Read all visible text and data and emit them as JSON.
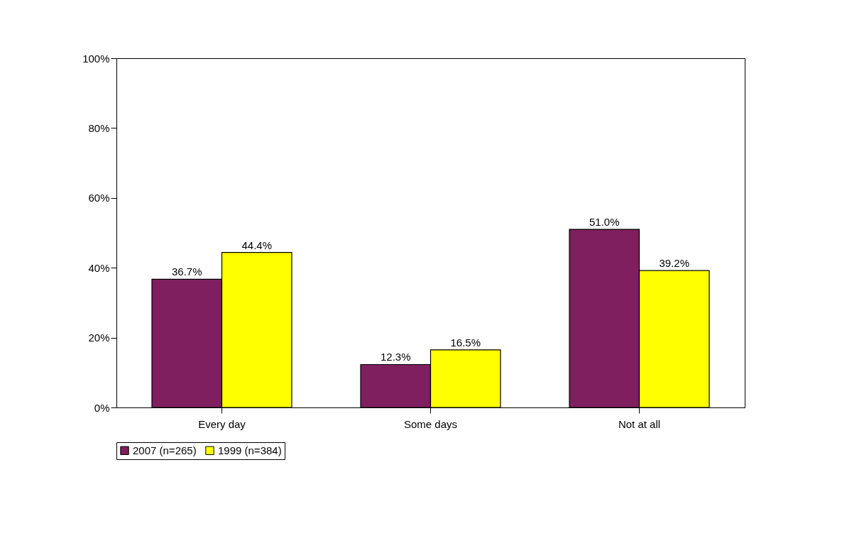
{
  "chart_data": {
    "type": "bar",
    "categories": [
      "Every day",
      "Some days",
      "Not at all"
    ],
    "series": [
      {
        "name": "2007 (n=265)",
        "color": "#7f1f5f",
        "values": [
          36.7,
          12.3,
          51.0
        ],
        "value_labels": [
          "36.7%",
          "12.3%",
          "51.0%"
        ]
      },
      {
        "name": "1999 (n=384)",
        "color": "#ffff00",
        "values": [
          44.4,
          16.5,
          39.2
        ],
        "value_labels": [
          "44.4%",
          "16.5%",
          "39.2%"
        ]
      }
    ],
    "ylim": [
      0,
      100
    ],
    "yticks": [
      {
        "value": 0,
        "label": "0%"
      },
      {
        "value": 20,
        "label": "20%"
      },
      {
        "value": 40,
        "label": "40%"
      },
      {
        "value": 60,
        "label": "60%"
      },
      {
        "value": 80,
        "label": "80%"
      },
      {
        "value": 100,
        "label": "100%"
      }
    ],
    "grid": false,
    "legend": "bottom"
  }
}
